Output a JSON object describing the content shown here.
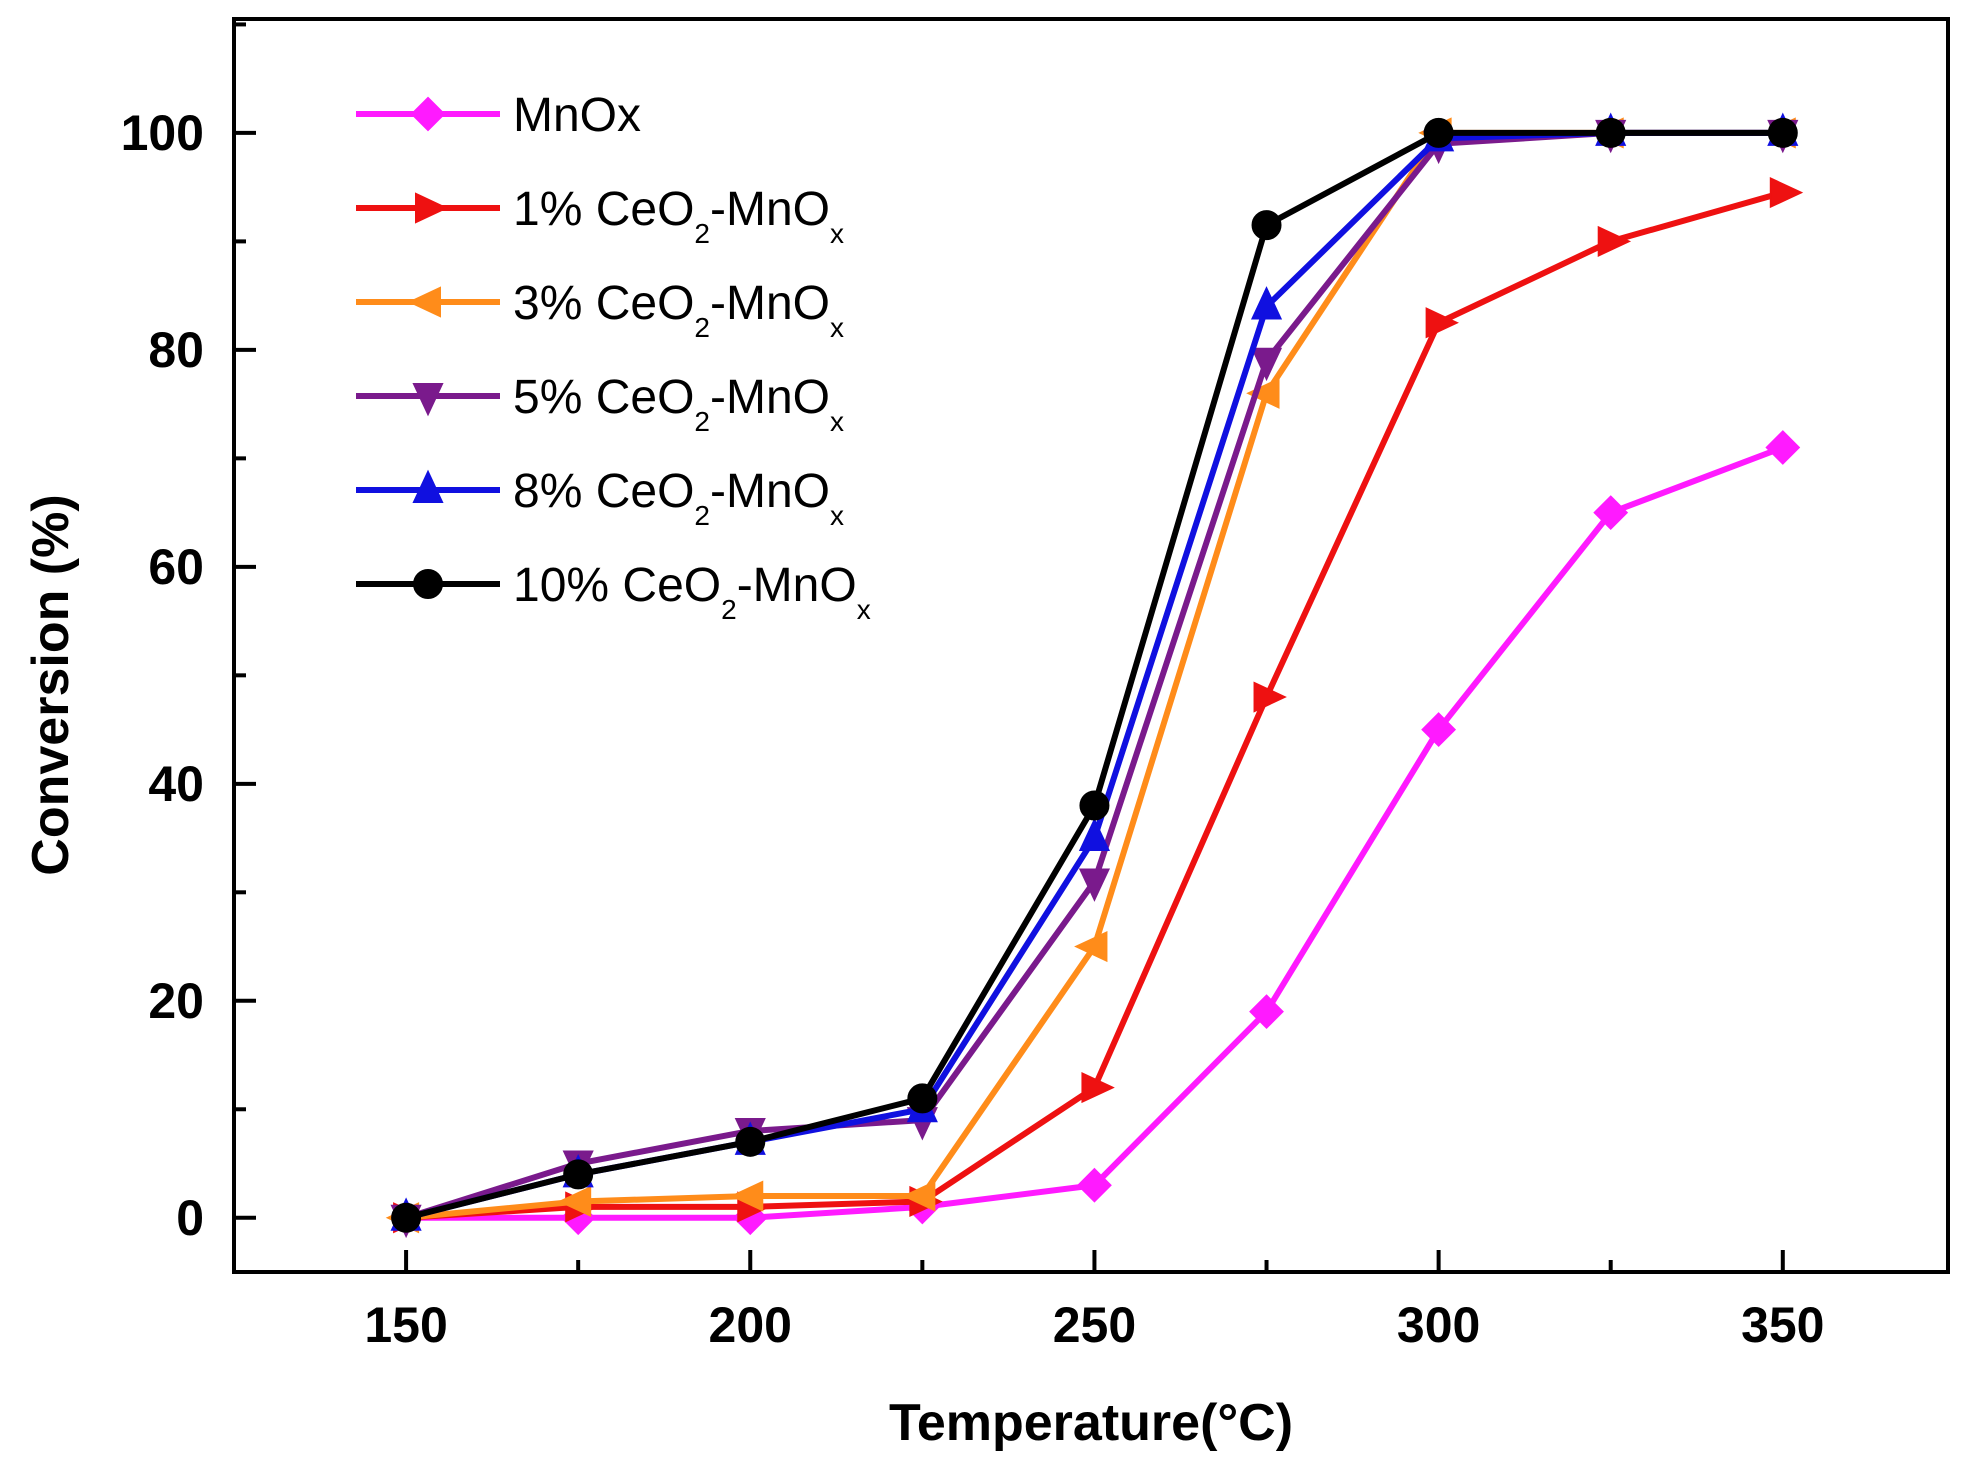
{
  "chart_data": {
    "type": "line",
    "title": "",
    "xlabel": "Temperature(°C)",
    "ylabel": "Conversion (%)",
    "xlim": [
      125,
      374
    ],
    "ylim": [
      -5,
      110.5
    ],
    "xticks": [
      150,
      200,
      250,
      300,
      350
    ],
    "yticks": [
      0,
      20,
      40,
      60,
      80,
      100
    ],
    "x": [
      150,
      175,
      200,
      225,
      250,
      275,
      300,
      325,
      350
    ],
    "grid": false,
    "legend_position": "top-left",
    "series": [
      {
        "name": "MnOx",
        "label_parts": [
          "MnOx"
        ],
        "color": "#ff1aff",
        "marker": "diamond",
        "values": [
          0,
          0,
          0,
          1,
          3,
          19,
          45,
          65,
          71
        ]
      },
      {
        "name": "1% CeO2-MnOx",
        "label_parts": [
          "1% CeO",
          "2",
          "-MnO",
          "x"
        ],
        "color": "#ee1111",
        "marker": "triangle-right",
        "values": [
          0,
          1,
          1,
          1.5,
          12,
          48,
          82.5,
          90,
          94.5
        ]
      },
      {
        "name": "3% CeO2-MnOx",
        "label_parts": [
          "3% CeO",
          "2",
          "-MnO",
          "x"
        ],
        "color": "#ff8c1a",
        "marker": "triangle-left",
        "values": [
          0,
          1.5,
          2,
          2,
          25,
          76,
          100,
          100,
          100
        ]
      },
      {
        "name": "5% CeO2-MnOx",
        "label_parts": [
          "5% CeO",
          "2",
          "-MnO",
          "x"
        ],
        "color": "#7a1a8c",
        "marker": "triangle-down",
        "values": [
          0,
          5,
          8,
          9,
          31,
          79,
          99,
          100,
          100
        ]
      },
      {
        "name": "8% CeO2-MnOx",
        "label_parts": [
          "8% CeO",
          "2",
          "-MnO",
          "x"
        ],
        "color": "#1010e0",
        "marker": "triangle-up",
        "values": [
          0,
          4,
          7,
          10,
          35,
          84,
          99.5,
          100,
          100
        ]
      },
      {
        "name": "10% CeO2-MnOx",
        "label_parts": [
          "10% CeO",
          "2",
          "-MnO",
          "x"
        ],
        "color": "#000000",
        "marker": "circle",
        "values": [
          0,
          4,
          7,
          11,
          38,
          91.5,
          100,
          100,
          100
        ]
      }
    ]
  }
}
